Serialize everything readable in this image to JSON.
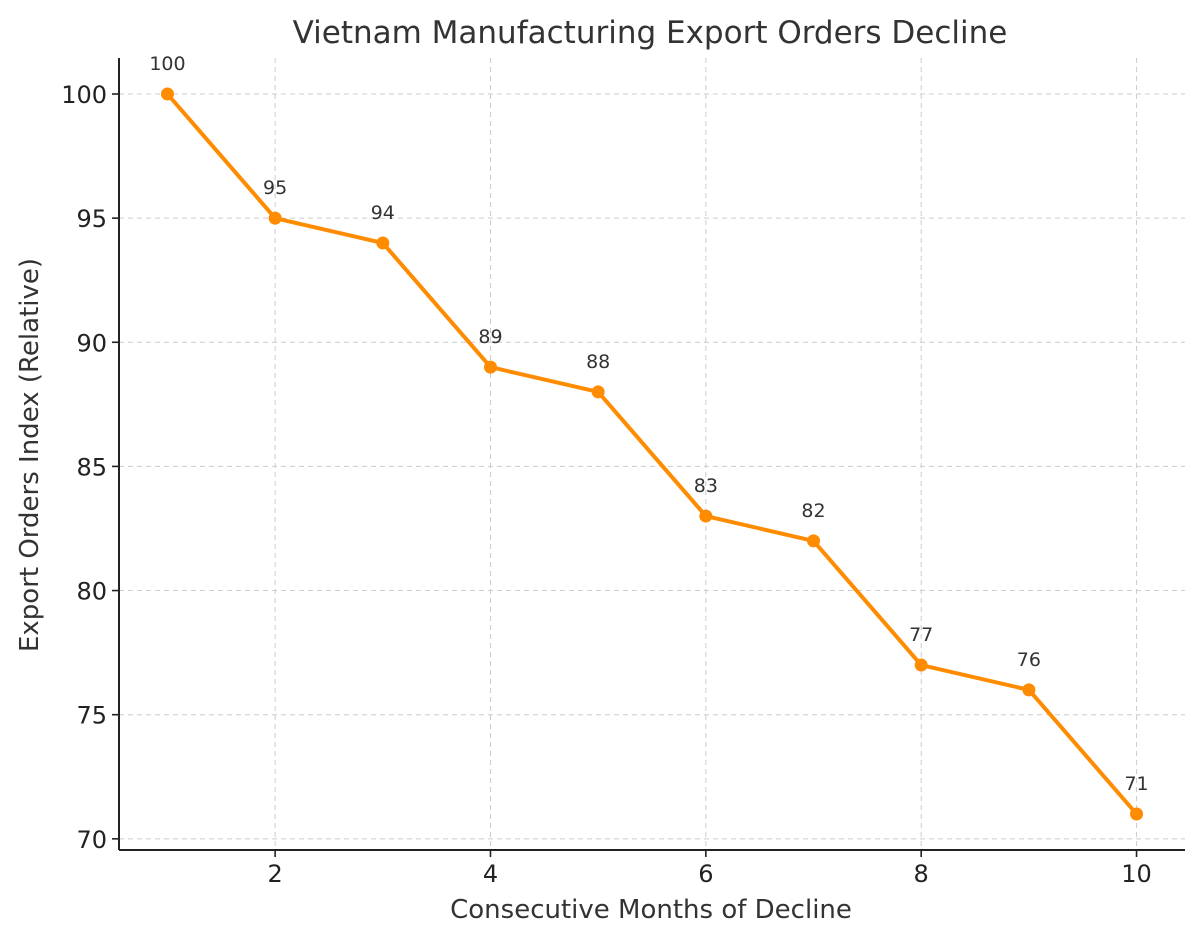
{
  "chart_data": {
    "type": "line",
    "title": "Vietnam Manufacturing Export Orders Decline",
    "xlabel": "Consecutive Months of Decline",
    "ylabel": "Export Orders Index (Relative)",
    "x": [
      1,
      2,
      3,
      4,
      5,
      6,
      7,
      8,
      9,
      10
    ],
    "series": [
      {
        "name": "Export Orders Index",
        "values": [
          100,
          95,
          94,
          89,
          88,
          83,
          82,
          77,
          76,
          71
        ],
        "color": "#ff8c00"
      }
    ],
    "xlim": [
      0.55,
      10.45
    ],
    "ylim": [
      69.55,
      101.45
    ],
    "xticks": [
      2,
      4,
      6,
      8,
      10
    ],
    "yticks": [
      70,
      75,
      80,
      85,
      90,
      95,
      100
    ],
    "grid": true,
    "data_labels": [
      "100",
      "95",
      "94",
      "89",
      "88",
      "83",
      "82",
      "77",
      "76",
      "71"
    ]
  }
}
